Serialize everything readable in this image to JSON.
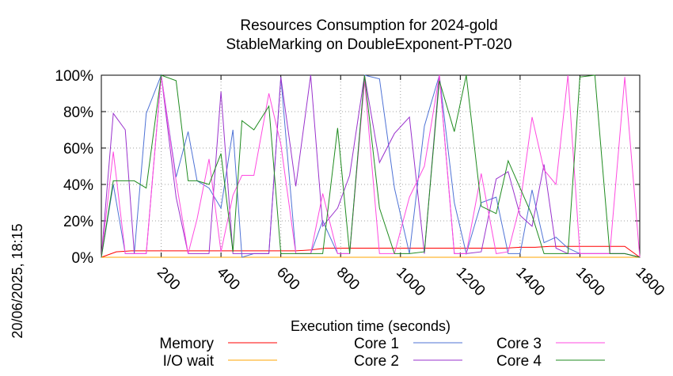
{
  "chart_data": {
    "type": "line",
    "title": "Resources Consumption for 2024-gold",
    "subtitle": "StableMarking on DoubleExponent-PT-020",
    "xlabel": "Execution time (seconds)",
    "ylabel": "",
    "side_label": "20/06/2025, 18:15",
    "xlim": [
      0,
      1800
    ],
    "ylim": [
      0,
      100
    ],
    "x_ticks": [
      "200",
      "400",
      "600",
      "800",
      "1000",
      "1200",
      "1400",
      "1600",
      "1800"
    ],
    "x_tick_values": [
      200,
      400,
      600,
      800,
      1000,
      1200,
      1400,
      1600,
      1800
    ],
    "y_ticks": [
      "0%",
      "20%",
      "40%",
      "60%",
      "80%",
      "100%"
    ],
    "y_tick_values": [
      0,
      20,
      40,
      60,
      80,
      100
    ],
    "grid": true,
    "legend_position": "bottom",
    "series": [
      {
        "name": "Memory",
        "color": "#ff0000",
        "x": [
          0,
          50,
          100,
          150,
          200,
          250,
          300,
          350,
          400,
          450,
          500,
          550,
          600,
          650,
          700,
          750,
          800,
          850,
          900,
          950,
          1000,
          1050,
          1100,
          1150,
          1200,
          1250,
          1300,
          1350,
          1400,
          1450,
          1500,
          1550,
          1600,
          1650,
          1700,
          1750,
          1800
        ],
        "values": [
          0,
          3,
          3.5,
          3.5,
          3.5,
          3.5,
          3.5,
          3.5,
          3.5,
          3.5,
          3.5,
          3.5,
          3.5,
          3.5,
          4,
          5,
          5,
          5,
          5,
          5,
          5,
          5,
          5,
          5,
          5,
          5,
          5,
          5,
          5.5,
          5.5,
          6,
          6,
          6,
          6,
          6,
          6,
          0
        ]
      },
      {
        "name": "I/O wait",
        "color": "#ffa500",
        "x": [
          0,
          1800
        ],
        "values": [
          0,
          0
        ]
      },
      {
        "name": "Core 1",
        "color": "#4f73d6",
        "x": [
          0,
          40,
          80,
          110,
          150,
          200,
          250,
          290,
          320,
          360,
          400,
          440,
          470,
          510,
          560,
          600,
          650,
          700,
          740,
          790,
          830,
          880,
          930,
          980,
          1030,
          1080,
          1130,
          1180,
          1220,
          1270,
          1320,
          1360,
          1400,
          1440,
          1480,
          1520,
          1560,
          1600,
          1650,
          1700,
          1750,
          1800
        ],
        "values": [
          0,
          40,
          2,
          2,
          79,
          100,
          44,
          69,
          42,
          38,
          27,
          70,
          0,
          2,
          2,
          99,
          2,
          2,
          20,
          2,
          2,
          100,
          98,
          38,
          2,
          72,
          100,
          30,
          2,
          30,
          33,
          2,
          2,
          37,
          8,
          11,
          5,
          2,
          2,
          2,
          2,
          0
        ]
      },
      {
        "name": "Core 2",
        "color": "#9a32cd",
        "x": [
          0,
          40,
          80,
          110,
          150,
          200,
          250,
          290,
          320,
          360,
          400,
          440,
          470,
          510,
          560,
          600,
          650,
          700,
          740,
          790,
          830,
          880,
          930,
          980,
          1030,
          1080,
          1130,
          1180,
          1220,
          1270,
          1320,
          1360,
          1400,
          1440,
          1480,
          1520,
          1560,
          1600,
          1650,
          1700,
          1750,
          1800
        ],
        "values": [
          0,
          79,
          70,
          2,
          2,
          100,
          33,
          2,
          2,
          2,
          91,
          2,
          2,
          2,
          2,
          99,
          39,
          100,
          17,
          27,
          45,
          100,
          52,
          68,
          77,
          2,
          100,
          2,
          2,
          3,
          43,
          47,
          23,
          17,
          51,
          5,
          2,
          2,
          2,
          2,
          2,
          0
        ]
      },
      {
        "name": "Core 3",
        "color": "#ff4ae0",
        "x": [
          0,
          40,
          80,
          110,
          150,
          200,
          250,
          290,
          320,
          360,
          400,
          440,
          470,
          510,
          560,
          600,
          650,
          700,
          740,
          790,
          830,
          880,
          930,
          980,
          1030,
          1080,
          1130,
          1180,
          1220,
          1270,
          1320,
          1360,
          1400,
          1440,
          1480,
          1520,
          1560,
          1600,
          1650,
          1700,
          1750,
          1800
        ],
        "values": [
          0,
          58,
          2,
          2,
          2,
          100,
          42,
          2,
          21,
          54,
          3,
          34,
          45,
          45,
          90,
          62,
          2,
          2,
          35,
          2,
          2,
          97,
          2,
          2,
          33,
          50,
          100,
          2,
          2,
          46,
          2,
          3,
          29,
          77,
          48,
          40,
          100,
          2,
          2,
          2,
          99,
          0
        ]
      },
      {
        "name": "Core 4",
        "color": "#1f8b1f",
        "x": [
          0,
          40,
          80,
          110,
          150,
          200,
          250,
          290,
          320,
          360,
          400,
          440,
          470,
          510,
          560,
          600,
          650,
          700,
          740,
          790,
          830,
          880,
          930,
          980,
          1030,
          1080,
          1130,
          1180,
          1220,
          1270,
          1320,
          1360,
          1400,
          1440,
          1480,
          1520,
          1560,
          1600,
          1650,
          1700,
          1750,
          1800
        ],
        "values": [
          0,
          42,
          42,
          42,
          38,
          100,
          97,
          42,
          42,
          40,
          57,
          3,
          75,
          70,
          83,
          2,
          2,
          2,
          2,
          71,
          2,
          100,
          27,
          2,
          2,
          3,
          97,
          69,
          100,
          28,
          24,
          53,
          38,
          23,
          2,
          2,
          2,
          99,
          100,
          2,
          2,
          0
        ]
      }
    ]
  }
}
